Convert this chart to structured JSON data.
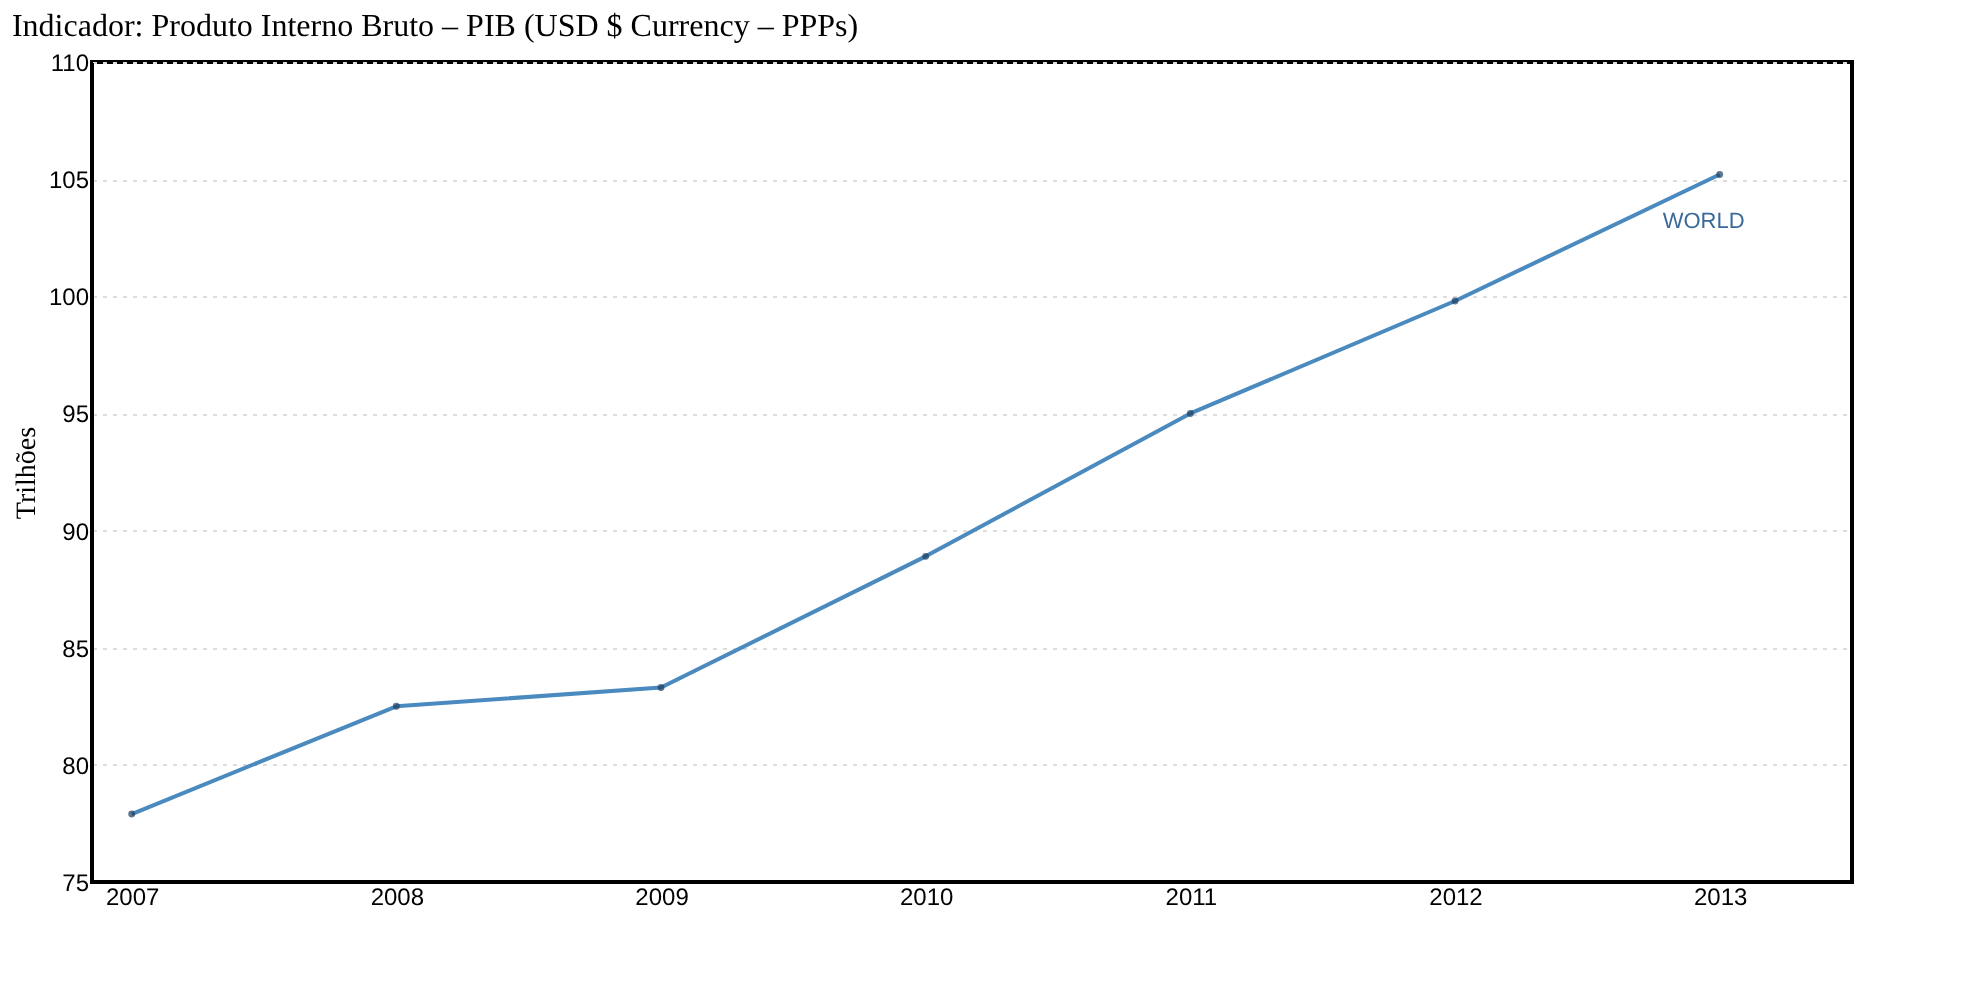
{
  "chart_data": {
    "type": "line",
    "title": "Indicador: Produto Interno Bruto – PIB (USD $ Currency – PPPs)",
    "ylabel": "Trilhões",
    "categories": [
      "2007",
      "2008",
      "2009",
      "2010",
      "2011",
      "2012",
      "2013"
    ],
    "series": [
      {
        "name": "WORLD",
        "color": "#4a8abf",
        "values": [
          77.9,
          82.5,
          83.3,
          88.9,
          95.0,
          99.8,
          105.2
        ]
      }
    ],
    "ylim": [
      75,
      110
    ],
    "yticks": [
      75,
      80,
      85,
      90,
      95,
      100,
      105,
      110
    ],
    "grid": "y",
    "marker": "circle",
    "line_style": "solid"
  }
}
